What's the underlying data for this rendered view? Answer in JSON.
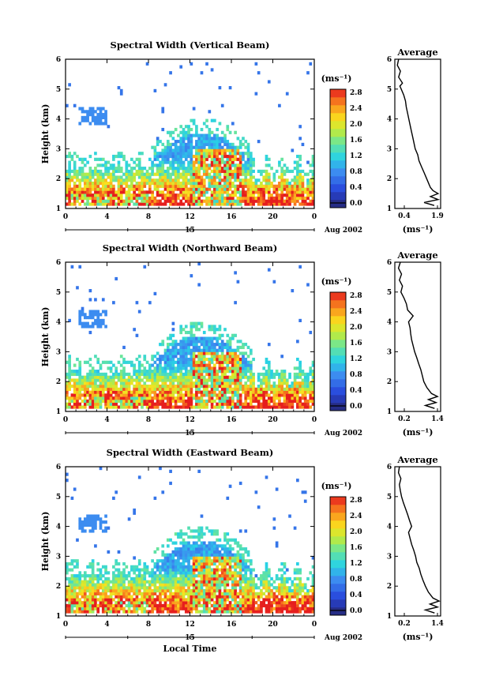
{
  "chart_data": [
    {
      "type": "heatmap",
      "title": "Spectral Width (Vertical Beam)",
      "ylabel": "Height (km)",
      "x_ticks": [
        "0",
        "4",
        "8",
        "12",
        "16",
        "20",
        "0"
      ],
      "y_ticks": [
        "1",
        "2",
        "3",
        "4",
        "5",
        "6"
      ],
      "xlim": [
        0,
        24
      ],
      "ylim": [
        1,
        6
      ],
      "date_day": "15",
      "date_label": "Aug 2002",
      "colorbar": {
        "unit": "(ms⁻¹)",
        "levels": [
          "0.0",
          "0.4",
          "0.8",
          "1.2",
          "1.6",
          "2.0",
          "2.4",
          "2.8"
        ],
        "vmax": 3.0
      },
      "profile": {
        "title": "Average",
        "xlabel": "(ms⁻¹)",
        "x_ticks": [
          "0.4",
          "1.9"
        ],
        "xlim": [
          0.2,
          2.0
        ],
        "heights": [
          1.1,
          1.2,
          1.3,
          1.4,
          1.5,
          1.6,
          1.7,
          1.8,
          2.0,
          2.2,
          2.4,
          2.6,
          2.8,
          3.0,
          3.2,
          3.4,
          3.6,
          3.8,
          4.0,
          4.2,
          4.4,
          4.6,
          4.8,
          5.0,
          5.1,
          5.2,
          5.4,
          5.6,
          5.8,
          6.0
        ],
        "values": [
          1.75,
          1.35,
          1.9,
          1.6,
          1.9,
          1.7,
          1.6,
          1.55,
          1.45,
          1.35,
          1.25,
          1.15,
          1.1,
          1.0,
          0.95,
          0.9,
          0.85,
          0.8,
          0.75,
          0.7,
          0.65,
          0.62,
          0.55,
          0.45,
          0.4,
          0.5,
          0.35,
          0.42,
          0.3,
          0.35
        ]
      }
    },
    {
      "type": "heatmap",
      "title": "Spectral Width (Northward Beam)",
      "ylabel": "Height (km)",
      "x_ticks": [
        "0",
        "4",
        "8",
        "12",
        "16",
        "20",
        "0"
      ],
      "y_ticks": [
        "1",
        "2",
        "3",
        "4",
        "5",
        "6"
      ],
      "xlim": [
        0,
        24
      ],
      "ylim": [
        1,
        6
      ],
      "date_day": "15",
      "date_label": "Aug 2002",
      "colorbar": {
        "unit": "(ms⁻¹)",
        "levels": [
          "0.0",
          "0.4",
          "0.8",
          "1.2",
          "1.6",
          "2.0",
          "2.4",
          "2.8"
        ],
        "vmax": 3.0
      },
      "profile": {
        "title": "Average",
        "xlabel": "(ms⁻¹)",
        "x_ticks": [
          "0.2",
          "1.4"
        ],
        "xlim": [
          0.0,
          1.5
        ],
        "heights": [
          1.1,
          1.2,
          1.3,
          1.4,
          1.5,
          1.6,
          1.8,
          2.0,
          2.2,
          2.4,
          2.6,
          2.8,
          3.0,
          3.2,
          3.4,
          3.6,
          3.8,
          4.0,
          4.2,
          4.4,
          4.6,
          4.8,
          5.0,
          5.2,
          5.4,
          5.6,
          5.8,
          6.0
        ],
        "values": [
          1.3,
          1.0,
          1.35,
          1.1,
          1.4,
          1.2,
          1.05,
          0.95,
          0.9,
          0.85,
          0.78,
          0.72,
          0.65,
          0.6,
          0.55,
          0.52,
          0.5,
          0.45,
          0.6,
          0.42,
          0.38,
          0.3,
          0.2,
          0.25,
          0.15,
          0.22,
          0.12,
          0.18
        ]
      }
    },
    {
      "type": "heatmap",
      "title": "Spectral Width (Eastward Beam)",
      "ylabel": "Height (km)",
      "xlabel": "Local Time",
      "x_ticks": [
        "0",
        "4",
        "8",
        "12",
        "16",
        "20",
        "0"
      ],
      "y_ticks": [
        "1",
        "2",
        "3",
        "4",
        "5",
        "6"
      ],
      "xlim": [
        0,
        24
      ],
      "ylim": [
        1,
        6
      ],
      "date_day": "15",
      "date_label": "Aug 2002",
      "colorbar": {
        "unit": "(ms⁻¹)",
        "levels": [
          "0.0",
          "0.4",
          "0.8",
          "1.2",
          "1.6",
          "2.0",
          "2.4",
          "2.8"
        ],
        "vmax": 3.0
      },
      "profile": {
        "title": "Average",
        "xlabel": "(ms⁻¹)",
        "x_ticks": [
          "0.2",
          "1.4"
        ],
        "xlim": [
          0.0,
          1.5
        ],
        "heights": [
          1.1,
          1.2,
          1.3,
          1.4,
          1.5,
          1.6,
          1.8,
          2.0,
          2.2,
          2.4,
          2.6,
          2.8,
          3.0,
          3.2,
          3.4,
          3.6,
          3.8,
          4.0,
          4.2,
          4.4,
          4.6,
          4.8,
          5.0,
          5.2,
          5.4,
          5.6,
          5.8,
          6.0
        ],
        "values": [
          1.3,
          1.0,
          1.4,
          1.15,
          1.45,
          1.25,
          1.1,
          1.0,
          0.92,
          0.85,
          0.8,
          0.72,
          0.68,
          0.62,
          0.55,
          0.5,
          0.45,
          0.55,
          0.48,
          0.42,
          0.35,
          0.28,
          0.22,
          0.18,
          0.15,
          0.2,
          0.12,
          0.15
        ]
      }
    }
  ]
}
